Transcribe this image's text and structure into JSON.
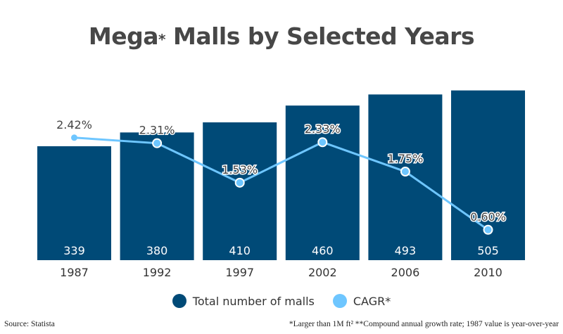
{
  "title": {
    "main_a": "Mega",
    "star": "*",
    "main_b": " Malls by Selected Years"
  },
  "chart_data": {
    "type": "bar",
    "categories": [
      "1987",
      "1992",
      "1997",
      "2002",
      "2006",
      "2010"
    ],
    "series": [
      {
        "name": "Total number of malls",
        "type": "bar",
        "values": [
          339,
          380,
          410,
          460,
          493,
          505
        ],
        "color": "#004a77"
      },
      {
        "name": "CAGR*",
        "type": "line",
        "values": [
          2.42,
          2.31,
          1.53,
          2.33,
          1.75,
          0.6
        ],
        "labels": [
          "2.42%",
          "2.31%",
          "1.53%",
          "2.33%",
          "1.75%",
          "0.60%"
        ],
        "color": "#6ec6ff"
      }
    ],
    "ylim": [
      0,
      505
    ],
    "grid": false,
    "legend": "bottom"
  },
  "footer": {
    "source": "Source: Statista",
    "note": "*Larger than 1M ft² **Compound annual growth rate; 1987 value is year-over-year"
  }
}
